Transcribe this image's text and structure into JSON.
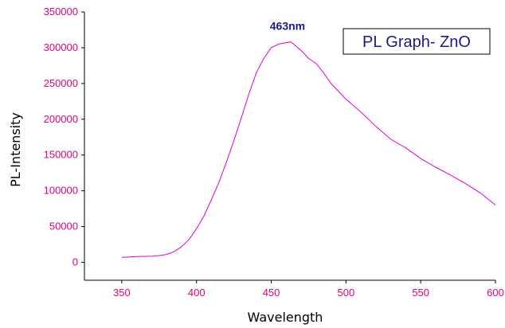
{
  "chart_data": {
    "type": "line",
    "title": "",
    "legend_label": "PL Graph- ZnO",
    "legend_position": "top-right",
    "xlabel": "Wavelength",
    "ylabel": "PL-Intensity",
    "xlim": [
      325,
      600
    ],
    "ylim": [
      -25000,
      350000
    ],
    "grid": false,
    "x_ticks": [
      350,
      400,
      450,
      500,
      550,
      600
    ],
    "y_ticks": [
      0,
      50000,
      100000,
      150000,
      200000,
      250000,
      300000,
      350000
    ],
    "x_tick_labels": [
      "350",
      "400",
      "450",
      "500",
      "550",
      "600"
    ],
    "y_tick_labels": [
      "0",
      "50000",
      "100000",
      "150000",
      "200000",
      "250000",
      "300000",
      "350000"
    ],
    "peak_label": "463nm",
    "peak_x": 463,
    "peak_y": 308000,
    "series": [
      {
        "color": "#e000e0",
        "x": [
          350,
          360,
          370,
          375,
          380,
          385,
          390,
          395,
          400,
          405,
          410,
          415,
          420,
          425,
          430,
          435,
          440,
          445,
          450,
          455,
          460,
          463,
          465,
          470,
          475,
          480,
          485,
          490,
          500,
          510,
          520,
          530,
          540,
          550,
          560,
          570,
          580,
          590,
          600
        ],
        "y": [
          7000,
          8000,
          8500,
          9500,
          11000,
          15000,
          22000,
          32000,
          47000,
          65000,
          88000,
          112000,
          140000,
          170000,
          202000,
          235000,
          265000,
          285000,
          300000,
          305000,
          307000,
          308000,
          305000,
          296000,
          285000,
          278000,
          265000,
          250000,
          228000,
          210000,
          190000,
          172000,
          160000,
          145000,
          133000,
          122000,
          110000,
          97000,
          80000
        ]
      }
    ]
  }
}
